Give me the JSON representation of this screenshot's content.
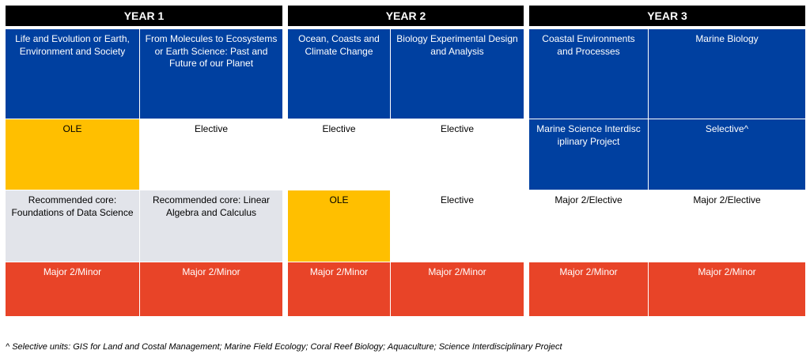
{
  "years": {
    "y1": "YEAR 1",
    "y2": "YEAR 2",
    "y3": "YEAR 3"
  },
  "rows": {
    "r1": {
      "y1a": "Life and Evolution or Earth, Environment and Society",
      "y1b": "From Molecules to Ecosystems or Earth Science: Past and Future of our Planet",
      "y2a": "Ocean, Coasts and Climate Change",
      "y2b": "Biology Experimental Design and Analysis",
      "y3a": "Coastal Environments and Processes",
      "y3b": "Marine Biology"
    },
    "r2": {
      "y1a": "OLE",
      "y1b": "Elective",
      "y2a": "Elective",
      "y2b": "Elective",
      "y3a": "Marine Science Interdisciplinary Project",
      "y3b": "Selective^"
    },
    "r3": {
      "y1a": "Recommended core: Foundations of Data Science",
      "y1b": "Recommended core: Linear Algebra and Calculus",
      "y2a": "OLE",
      "y2b": "Elective",
      "y3a": "Major 2/Elective",
      "y3b": "Major 2/Elective"
    },
    "r4": {
      "y1a": "Major 2/Minor",
      "y1b": "Major 2/Minor",
      "y2a": "Major 2/Minor",
      "y2b": "Major 2/Minor",
      "y3a": "Major 2/Minor",
      "y3b": "Major 2/Minor"
    }
  },
  "footnote": "^ Selective units: GIS for Land and Costal Management; Marine Field Ecology; Coral Reef Biology; Aquaculture; Science Interdisciplinary Project",
  "colors": {
    "header": "#000000",
    "core": "#0040a0",
    "ole": "#ffbf00",
    "recommended": "#e2e4ea",
    "major": "#e84428"
  }
}
